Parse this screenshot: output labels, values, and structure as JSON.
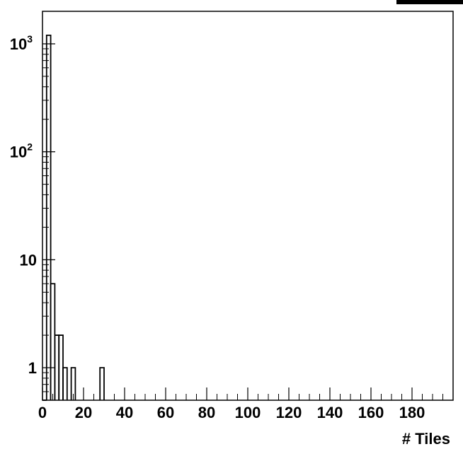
{
  "chart_data": {
    "type": "histogram",
    "title": "",
    "xlabel": "# Tiles",
    "ylabel": "",
    "xlim": [
      0,
      200
    ],
    "ylim": [
      0.5,
      2000
    ],
    "yscale": "log",
    "grid": false,
    "bin_width": 2,
    "bins": [
      {
        "x": 0,
        "count": 0.5
      },
      {
        "x": 2,
        "count": 1200
      },
      {
        "x": 4,
        "count": 6
      },
      {
        "x": 6,
        "count": 2
      },
      {
        "x": 8,
        "count": 2
      },
      {
        "x": 10,
        "count": 1
      },
      {
        "x": 12,
        "count": 0
      },
      {
        "x": 14,
        "count": 1
      },
      {
        "x": 16,
        "count": 0
      },
      {
        "x": 18,
        "count": 0
      },
      {
        "x": 20,
        "count": 0
      },
      {
        "x": 22,
        "count": 0
      },
      {
        "x": 24,
        "count": 0
      },
      {
        "x": 26,
        "count": 0
      },
      {
        "x": 28,
        "count": 1
      }
    ],
    "x_ticks": [
      {
        "value": 0,
        "label": "0"
      },
      {
        "value": 20,
        "label": "20"
      },
      {
        "value": 40,
        "label": "40"
      },
      {
        "value": 60,
        "label": "60"
      },
      {
        "value": 80,
        "label": "80"
      },
      {
        "value": 100,
        "label": "100"
      },
      {
        "value": 120,
        "label": "120"
      },
      {
        "value": 140,
        "label": "140"
      },
      {
        "value": 160,
        "label": "160"
      },
      {
        "value": 180,
        "label": "180"
      }
    ],
    "y_ticks": [
      {
        "value": 1,
        "base": "1",
        "exp": ""
      },
      {
        "value": 10,
        "base": "10",
        "exp": ""
      },
      {
        "value": 100,
        "base": "10",
        "exp": "2"
      },
      {
        "value": 1000,
        "base": "10",
        "exp": "3"
      }
    ],
    "line_color": "#000000"
  }
}
